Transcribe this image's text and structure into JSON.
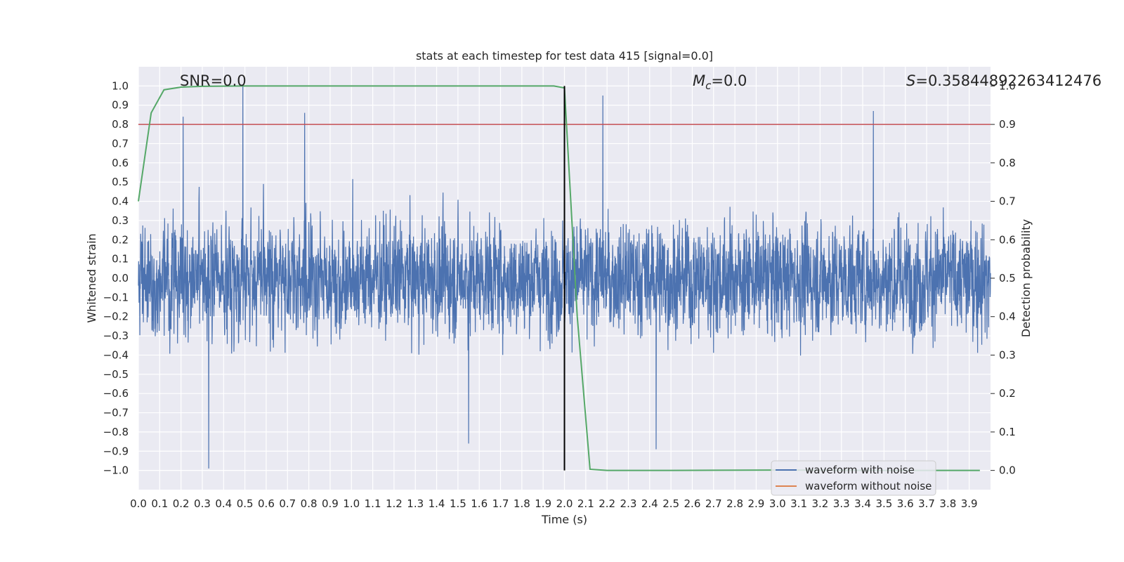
{
  "chart_data": {
    "type": "line",
    "title": "stats at each timestep for test data 415 [signal=0.0]",
    "xlabel": "Time (s)",
    "ylabel": "Whitened strain",
    "ylabel_right": "Detection probability",
    "xlim": [
      0.0,
      4.0
    ],
    "ylim": [
      -1.1,
      1.1
    ],
    "ylim_right": [
      -0.05,
      1.05
    ],
    "x_ticks": [
      "0.0",
      "0.1",
      "0.2",
      "0.3",
      "0.4",
      "0.5",
      "0.6",
      "0.7",
      "0.8",
      "0.9",
      "1.0",
      "1.1",
      "1.2",
      "1.3",
      "1.4",
      "1.5",
      "1.6",
      "1.7",
      "1.8",
      "1.9",
      "2.0",
      "2.1",
      "2.2",
      "2.3",
      "2.4",
      "2.5",
      "2.6",
      "2.7",
      "2.8",
      "2.9",
      "3.0",
      "3.1",
      "3.2",
      "3.3",
      "3.4",
      "3.5",
      "3.6",
      "3.7",
      "3.8",
      "3.9"
    ],
    "y_ticks": [
      "1.0",
      "0.9",
      "0.8",
      "0.7",
      "0.6",
      "0.5",
      "0.4",
      "0.3",
      "0.2",
      "0.1",
      "0.0",
      "-0.1",
      "-0.2",
      "-0.3",
      "-0.4",
      "-0.5",
      "-0.6",
      "-0.7",
      "-0.8",
      "-0.9",
      "-1.0"
    ],
    "y_ticks_right": [
      "1.0",
      "0.9",
      "0.8",
      "0.7",
      "0.6",
      "0.5",
      "0.4",
      "0.3",
      "0.2",
      "0.1",
      "0.0"
    ],
    "grid": true,
    "series": [
      {
        "name": "waveform with noise",
        "color": "#4c72b0",
        "axis": "left",
        "description": "noise, peaks within approx -1.0 to 1.0",
        "peaks": [
          {
            "x": 0.33,
            "y": -0.99
          },
          {
            "x": 0.49,
            "y": 1.0
          },
          {
            "x": 0.21,
            "y": 0.84
          },
          {
            "x": 0.78,
            "y": 0.86
          },
          {
            "x": 2.18,
            "y": 0.95
          },
          {
            "x": 3.45,
            "y": 0.87
          },
          {
            "x": 2.43,
            "y": -0.89
          },
          {
            "x": 1.55,
            "y": -0.86
          }
        ]
      },
      {
        "name": "waveform without noise",
        "color": "#dd8452",
        "axis": "left",
        "values": []
      },
      {
        "name": "detection probability",
        "color": "#55a868",
        "axis": "right",
        "x": [
          0.0,
          0.06,
          0.12,
          0.2,
          0.3,
          0.5,
          1.0,
          1.5,
          1.95,
          2.0,
          2.06,
          2.12,
          2.2,
          2.5,
          3.0,
          3.5,
          3.95
        ],
        "y": [
          0.7,
          0.93,
          0.99,
          0.997,
          0.999,
          1.0,
          1.0,
          1.0,
          1.0,
          0.995,
          0.4,
          0.003,
          0.0,
          0.0,
          0.001,
          0.0,
          0.0
        ]
      }
    ],
    "hlines": [
      {
        "y": 0.8,
        "axis": "left",
        "color": "#c44e52"
      }
    ],
    "vlines": [
      {
        "x": 2.0,
        "color": "#000000",
        "ymin": -1.0,
        "ymax": 1.0
      }
    ],
    "annotations": [
      {
        "text": "SNR=0.0"
      },
      {
        "text_main": "M",
        "text_sub": "c",
        "text_rest": "=0.0"
      },
      {
        "text_main": "S",
        "text_rest": "=0.35844892263412476"
      }
    ],
    "legend": {
      "position": "bottom-right",
      "entries": [
        {
          "label": "waveform with noise",
          "color": "#4c72b0"
        },
        {
          "label": "waveform without noise",
          "color": "#dd8452"
        }
      ]
    },
    "colors": {
      "plot_background": "#eaeaf2",
      "grid": "#ffffff",
      "text": "#262626"
    }
  }
}
